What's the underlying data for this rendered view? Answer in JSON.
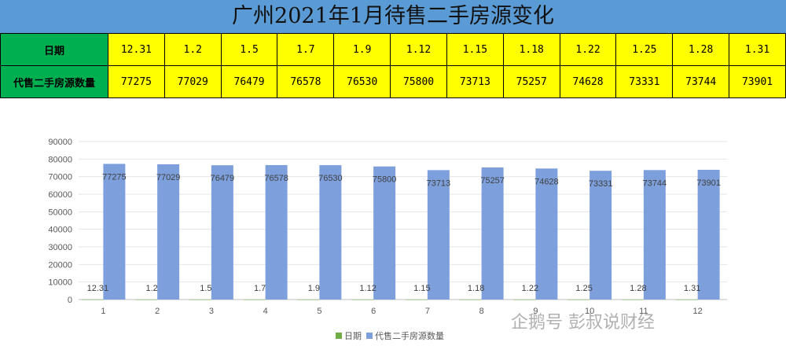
{
  "title": "广州2021年1月待售二手房源变化",
  "table": {
    "row1_label": "日期",
    "row2_label": "代售二手房源数量",
    "dates": [
      "12.31",
      "1.2",
      "1.5",
      "1.7",
      "1.9",
      "1.12",
      "1.15",
      "1.18",
      "1.22",
      "1.25",
      "1.28",
      "1.31"
    ],
    "counts": [
      "77275",
      "77029",
      "76479",
      "76578",
      "76530",
      "75800",
      "73713",
      "75257",
      "74628",
      "73331",
      "73744",
      "73901"
    ]
  },
  "chart_data": {
    "type": "bar",
    "categories": [
      "1",
      "2",
      "3",
      "4",
      "5",
      "6",
      "7",
      "8",
      "9",
      "10",
      "11",
      "12"
    ],
    "series": [
      {
        "name": "日期",
        "values": [
          12.31,
          1.2,
          1.5,
          1.7,
          1.9,
          1.12,
          1.15,
          1.18,
          1.22,
          1.25,
          1.28,
          1.31
        ],
        "labels": [
          "12.31",
          "1.2",
          "1.5",
          "1.7",
          "1.9",
          "1.12",
          "1.15",
          "1.18",
          "1.22",
          "1.25",
          "1.28",
          "1.31"
        ],
        "color": "#70ad47"
      },
      {
        "name": "代售二手房源数量",
        "values": [
          77275,
          77029,
          76479,
          76578,
          76530,
          75800,
          73713,
          75257,
          74628,
          73331,
          73744,
          73901
        ],
        "color": "#7da0dd"
      }
    ],
    "ylim": [
      0,
      90000
    ],
    "yticks": [
      0,
      10000,
      20000,
      30000,
      40000,
      50000,
      60000,
      70000,
      80000,
      90000
    ],
    "grid": true,
    "legend": "bottom"
  },
  "watermark": "企鹅号 彭叔说财经"
}
